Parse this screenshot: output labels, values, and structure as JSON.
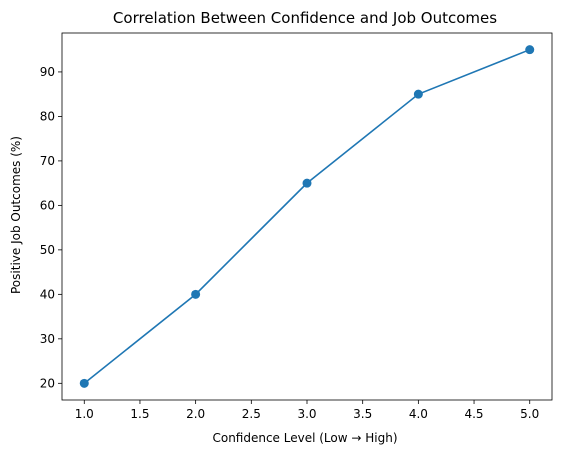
{
  "chart_data": {
    "type": "line",
    "title": "Correlation Between Confidence and Job Outcomes",
    "xlabel": "Confidence Level (Low → High)",
    "ylabel": "Positive Job Outcomes (%)",
    "xlim": [
      0.8,
      5.2
    ],
    "ylim": [
      16.25,
      98.75
    ],
    "x_ticks": [
      1.0,
      1.5,
      2.0,
      2.5,
      3.0,
      3.5,
      4.0,
      4.5,
      5.0
    ],
    "y_ticks": [
      20,
      30,
      40,
      50,
      60,
      70,
      80,
      90
    ],
    "grid": false,
    "series": [
      {
        "x": [
          1,
          2,
          3,
          4,
          5
        ],
        "y": [
          20,
          40,
          65,
          85,
          95
        ],
        "color": "#1f77b4",
        "marker": "circle"
      }
    ]
  }
}
